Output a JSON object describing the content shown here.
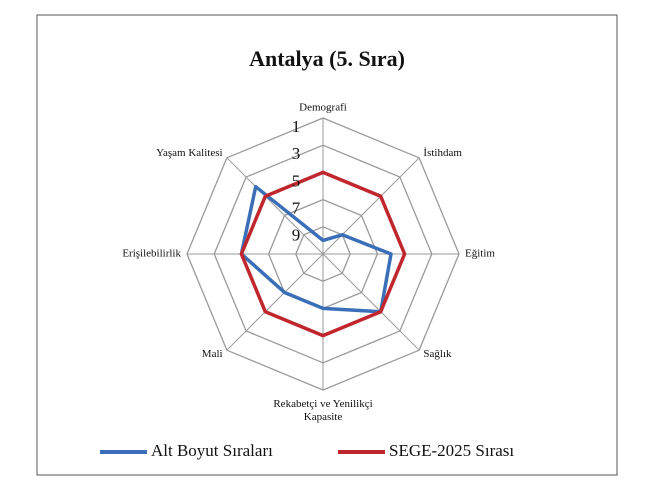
{
  "chart_data": {
    "type": "radar",
    "title": "Antalya (5. Sıra)",
    "categories": [
      "Demografi",
      "İstihdam",
      "Eğitim",
      "Sağlık",
      "Rekabetçi ve Yenilikçi\nKapasite",
      "Mali",
      "Erişilebilirlik",
      "Yaşam Kalitesi"
    ],
    "rlim": [
      11,
      1
    ],
    "rticks": [
      1,
      3,
      5,
      7,
      9
    ],
    "grid": true,
    "legend": "bottom",
    "series": [
      {
        "name": "Alt Boyut Sıraları",
        "color": "#3a6fb8",
        "values": [
          10,
          9,
          6,
          5,
          7,
          7,
          5,
          4
        ]
      },
      {
        "name": "SEGE-2025 Sırası",
        "color": "#c0262d",
        "values": [
          5,
          5,
          5,
          5,
          5,
          5,
          5,
          5
        ]
      }
    ]
  }
}
